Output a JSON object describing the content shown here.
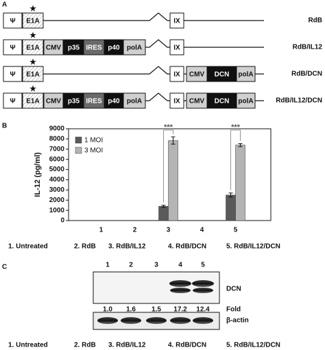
{
  "panel_a": {
    "label": "A",
    "marker": "★",
    "constructs": [
      {
        "name": "RdB",
        "parts": [
          "Ψ",
          "E1A",
          "IX"
        ]
      },
      {
        "name": "RdB/IL12",
        "parts": [
          "Ψ",
          "E1A",
          "CMV",
          "p35",
          "IRES",
          "p40",
          "polA",
          "IX"
        ]
      },
      {
        "name": "RdB/DCN",
        "parts": [
          "Ψ",
          "E1A",
          "IX",
          "CMV",
          "DCN",
          "polA"
        ]
      },
      {
        "name": "RdB/IL12/DCN",
        "parts": [
          "Ψ",
          "E1A",
          "CMV",
          "p35",
          "IRES",
          "p40",
          "polA",
          "IX",
          "CMV",
          "DCN",
          "polA"
        ]
      }
    ]
  },
  "chart_data": {
    "type": "bar",
    "panel_label": "B",
    "y_label": "IL-12 (pg/ml)",
    "categories": [
      "1",
      "2",
      "3",
      "4",
      "5"
    ],
    "series": [
      {
        "name": "1 MOI",
        "color": "#5a5a5a",
        "values": [
          0,
          0,
          1400,
          0,
          2500
        ],
        "errors": [
          0,
          0,
          100,
          0,
          200
        ]
      },
      {
        "name": "3 MOI",
        "color": "#b4b4b4",
        "values": [
          0,
          0,
          7850,
          0,
          7400
        ],
        "errors": [
          0,
          0,
          350,
          0,
          150
        ]
      }
    ],
    "ylim": [
      0,
      9000
    ],
    "yticks": [
      0,
      1000,
      2000,
      3000,
      4000,
      5000,
      6000,
      7000,
      8000,
      9000
    ],
    "annotations": [
      "***",
      "***"
    ],
    "legend": "upper left",
    "group_labels": [
      "1. Untreated",
      "2. RdB",
      "3. RdB/IL12",
      "4. RdB/DCN",
      "5. RdB/IL12/DCN"
    ]
  },
  "panel_c": {
    "label": "C",
    "lanes": [
      "1",
      "2",
      "3",
      "4",
      "5"
    ],
    "blot_label": "DCN",
    "fold_label": "Fold",
    "fold": [
      "1.0",
      "1.6",
      "1.5",
      "17.2",
      "12.4"
    ],
    "control_label": "β-actin",
    "group_labels": [
      "1. Untreated",
      "2. RdB",
      "3. RdB/IL12",
      "4. RdB/DCN",
      "5. RdB/IL12/DCN"
    ]
  }
}
